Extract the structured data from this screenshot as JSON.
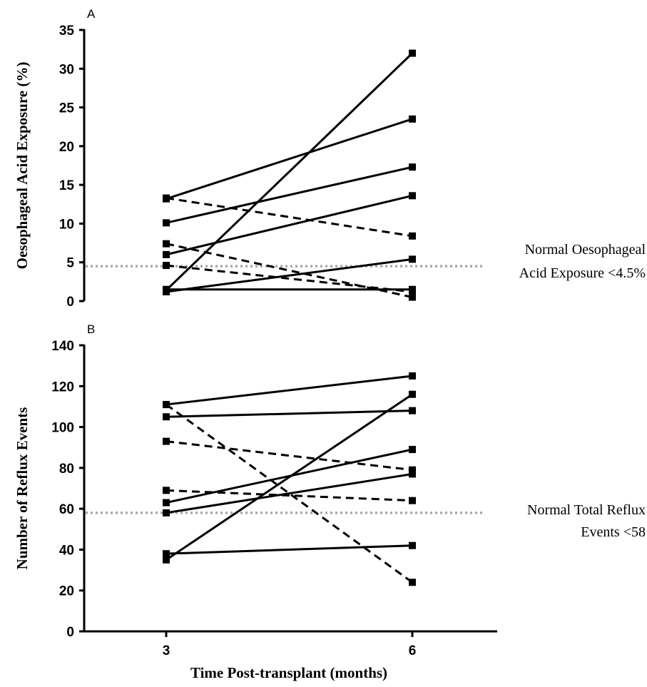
{
  "chart_data": [
    {
      "type": "line",
      "panel": "A",
      "ylabel": "Oesophageal Acid Exposure (%)",
      "xlabel": "",
      "x": [
        3,
        6
      ],
      "x_ticks": [
        "3",
        "6"
      ],
      "ylim": [
        0,
        35
      ],
      "y_ticks": [
        "0",
        "5",
        "10",
        "15",
        "20",
        "25",
        "30",
        "35"
      ],
      "grid": false,
      "reference_line": {
        "value": 4.5,
        "label_lines": [
          "Normal Oesophageal",
          "Acid Exposure <4.5%"
        ]
      },
      "series": [
        {
          "style": "solid",
          "values": [
            1.4,
            32
          ]
        },
        {
          "style": "solid",
          "values": [
            13.2,
            23.5
          ]
        },
        {
          "style": "solid",
          "values": [
            10.1,
            17.3
          ]
        },
        {
          "style": "solid",
          "values": [
            6,
            13.6
          ]
        },
        {
          "style": "solid",
          "values": [
            1.2,
            5.4
          ]
        },
        {
          "style": "solid",
          "values": [
            1.5,
            1.5
          ]
        },
        {
          "style": "dashed",
          "values": [
            13.3,
            8.4
          ]
        },
        {
          "style": "dashed",
          "values": [
            7.4,
            0.5
          ]
        },
        {
          "style": "dashed",
          "values": [
            4.6,
            1.2
          ]
        }
      ]
    },
    {
      "type": "line",
      "panel": "B",
      "ylabel": "Number of Reflux Events",
      "xlabel": "Time Post-transplant (months)",
      "x": [
        3,
        6
      ],
      "x_ticks": [
        "3",
        "6"
      ],
      "ylim": [
        0,
        140
      ],
      "y_ticks": [
        "0",
        "20",
        "40",
        "60",
        "80",
        "100",
        "120",
        "140"
      ],
      "grid": false,
      "reference_line": {
        "value": 58,
        "label_lines": [
          "Normal Total Reflux",
          "Events <58"
        ]
      },
      "series": [
        {
          "style": "solid",
          "values": [
            111,
            125
          ]
        },
        {
          "style": "solid",
          "values": [
            105,
            108
          ]
        },
        {
          "style": "solid",
          "values": [
            35,
            116
          ]
        },
        {
          "style": "solid",
          "values": [
            63,
            89
          ]
        },
        {
          "style": "solid",
          "values": [
            58,
            77
          ]
        },
        {
          "style": "solid",
          "values": [
            38,
            42
          ]
        },
        {
          "style": "dashed",
          "values": [
            111,
            24
          ]
        },
        {
          "style": "dashed",
          "values": [
            93,
            79
          ]
        },
        {
          "style": "dashed",
          "values": [
            69,
            64
          ]
        }
      ]
    }
  ]
}
